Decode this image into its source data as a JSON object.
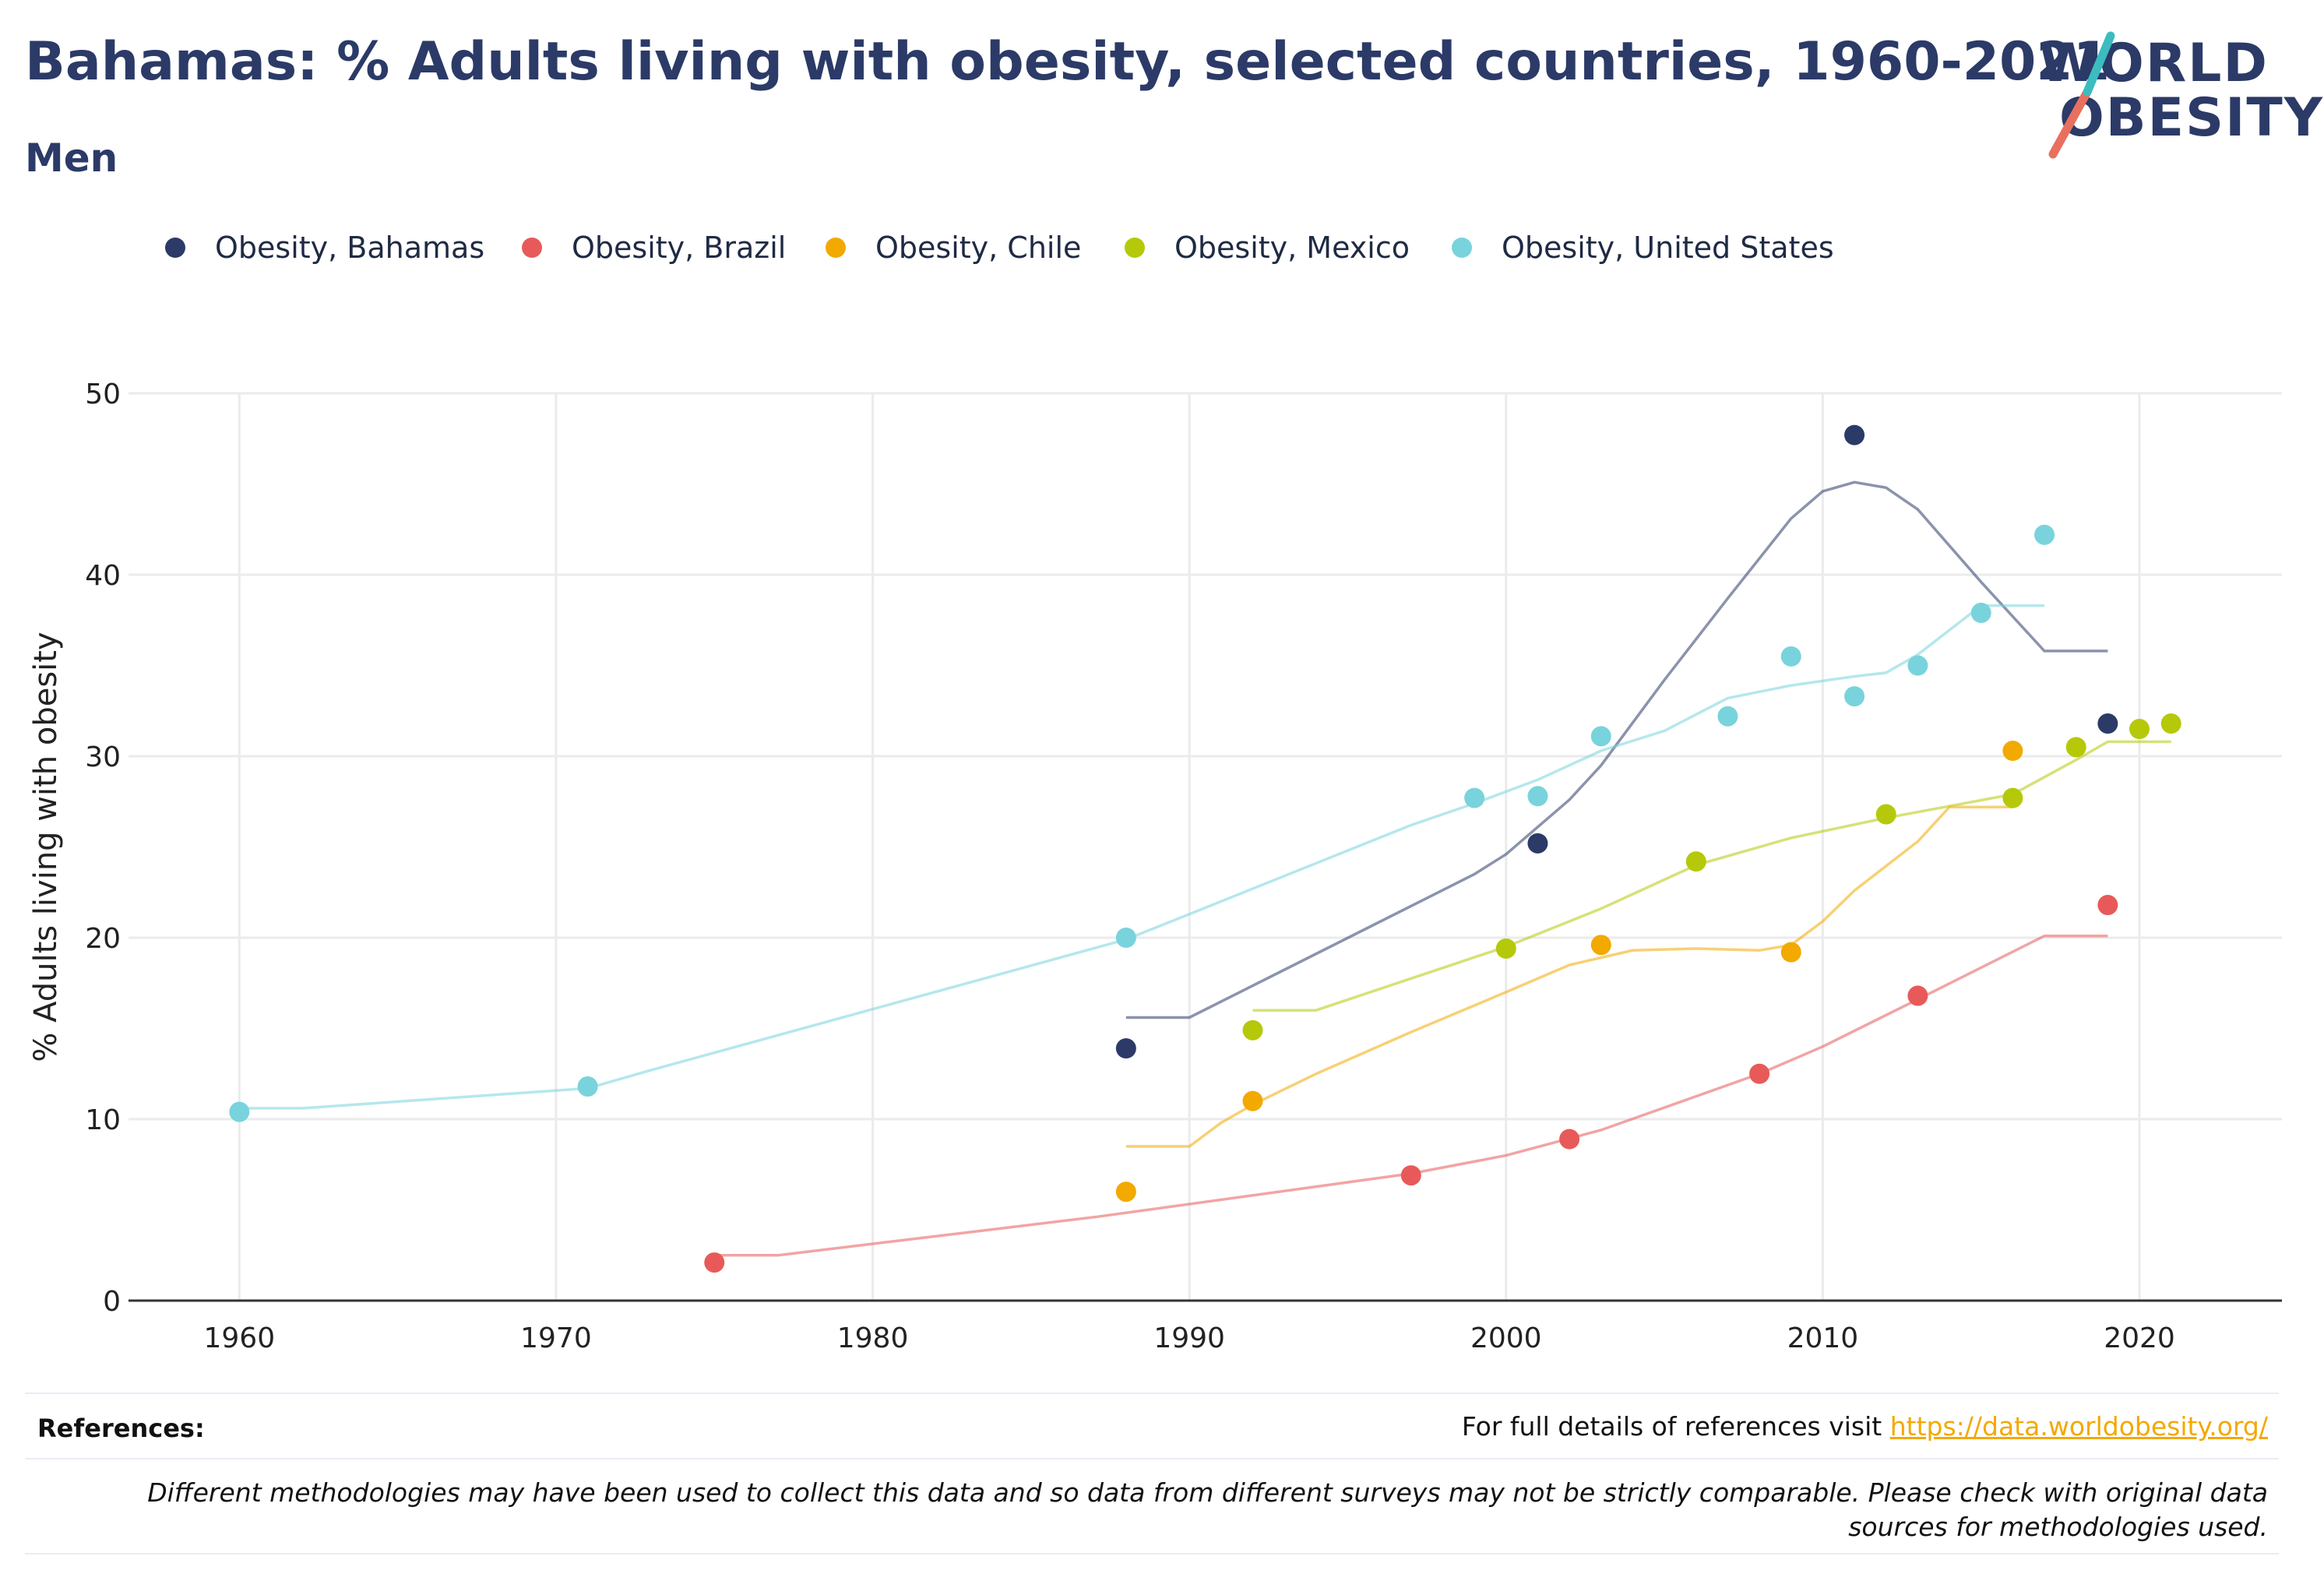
{
  "header": {
    "title": "Bahamas: % Adults living with obesity, selected countries, 1960-2021",
    "subtitle": "Men"
  },
  "logo": {
    "line1": "WORLD",
    "line2": "OBESITY"
  },
  "footer": {
    "references_label": "References:",
    "references_text": "For full details of references visit ",
    "references_link": "https://data.worldobesity.org/",
    "disclaimer": "Different methodologies may have been used to collect this data and so data from different surveys may not be strictly comparable. Please check with original data sources for methodologies used."
  },
  "colors": {
    "Bahamas": "#2b3a67",
    "Brazil": "#e85a5a",
    "Chile": "#f2a900",
    "Mexico": "#b5c90a",
    "United States": "#79d3dc",
    "title": "#2b3a67"
  },
  "chart_data": {
    "type": "scatter",
    "ylabel": "% Adults living with obesity",
    "xlim": [
      1956.5,
      2024.5
    ],
    "ylim": [
      0,
      50
    ],
    "x_ticks": [
      1960,
      1970,
      1980,
      1990,
      2000,
      2010,
      2020
    ],
    "y_ticks": [
      0,
      10,
      20,
      30,
      40,
      50
    ],
    "grid": true,
    "legend_position": "top",
    "series": [
      {
        "name": "Obesity, Bahamas",
        "color": "#2b3a67",
        "points": [
          [
            1988,
            13.9
          ],
          [
            2001,
            25.2
          ],
          [
            2011,
            47.7
          ],
          [
            2019,
            31.8
          ]
        ],
        "trend": [
          [
            1988,
            15.6
          ],
          [
            1990,
            15.6
          ],
          [
            1999,
            23.5
          ],
          [
            2000,
            24.6
          ],
          [
            2002,
            27.6
          ],
          [
            2003,
            29.5
          ],
          [
            2005,
            34.2
          ],
          [
            2007,
            38.7
          ],
          [
            2009,
            43.1
          ],
          [
            2010,
            44.6
          ],
          [
            2011,
            45.1
          ],
          [
            2012,
            44.8
          ],
          [
            2013,
            43.6
          ],
          [
            2015,
            39.6
          ],
          [
            2017,
            35.8
          ],
          [
            2019,
            35.8
          ]
        ]
      },
      {
        "name": "Obesity, Brazil",
        "color": "#e85a5a",
        "points": [
          [
            1975,
            2.1
          ],
          [
            1997,
            6.9
          ],
          [
            2002,
            8.9
          ],
          [
            2008,
            12.5
          ],
          [
            2013,
            16.8
          ],
          [
            2019,
            21.8
          ]
        ],
        "trend": [
          [
            1975,
            2.5
          ],
          [
            1977,
            2.5
          ],
          [
            1987,
            4.6
          ],
          [
            1997,
            7.0
          ],
          [
            2000,
            8.0
          ],
          [
            2003,
            9.4
          ],
          [
            2008,
            12.5
          ],
          [
            2010,
            14.0
          ],
          [
            2013,
            16.6
          ],
          [
            2017,
            20.1
          ],
          [
            2019,
            20.1
          ]
        ]
      },
      {
        "name": "Obesity, Chile",
        "color": "#f2a900",
        "points": [
          [
            1988,
            6.0
          ],
          [
            1992,
            11.0
          ],
          [
            2003,
            19.6
          ],
          [
            2009,
            19.2
          ],
          [
            2016,
            30.3
          ]
        ],
        "trend": [
          [
            1988,
            8.5
          ],
          [
            1990,
            8.5
          ],
          [
            1991,
            9.8
          ],
          [
            1992,
            10.8
          ],
          [
            1994,
            12.5
          ],
          [
            1997,
            14.8
          ],
          [
            2000,
            17.0
          ],
          [
            2002,
            18.5
          ],
          [
            2004,
            19.3
          ],
          [
            2006,
            19.4
          ],
          [
            2008,
            19.3
          ],
          [
            2009,
            19.6
          ],
          [
            2010,
            20.9
          ],
          [
            2011,
            22.6
          ],
          [
            2013,
            25.3
          ],
          [
            2014,
            27.2
          ],
          [
            2016,
            27.2
          ]
        ]
      },
      {
        "name": "Obesity, Mexico",
        "color": "#b5c90a",
        "points": [
          [
            1992,
            14.9
          ],
          [
            2000,
            19.4
          ],
          [
            2006,
            24.2
          ],
          [
            2012,
            26.8
          ],
          [
            2016,
            27.7
          ],
          [
            2018,
            30.5
          ],
          [
            2020,
            31.5
          ],
          [
            2021,
            31.8
          ]
        ],
        "trend": [
          [
            1992,
            16.0
          ],
          [
            1994,
            16.0
          ],
          [
            2000,
            19.5
          ],
          [
            2003,
            21.6
          ],
          [
            2006,
            24.0
          ],
          [
            2009,
            25.5
          ],
          [
            2012,
            26.6
          ],
          [
            2016,
            27.9
          ],
          [
            2018,
            29.8
          ],
          [
            2019,
            30.8
          ],
          [
            2021,
            30.8
          ]
        ]
      },
      {
        "name": "Obesity, United States",
        "color": "#79d3dc",
        "points": [
          [
            1960,
            10.4
          ],
          [
            1971,
            11.8
          ],
          [
            1988,
            20.0
          ],
          [
            1999,
            27.7
          ],
          [
            2001,
            27.8
          ],
          [
            2003,
            31.1
          ],
          [
            2007,
            32.2
          ],
          [
            2009,
            35.5
          ],
          [
            2011,
            33.3
          ],
          [
            2013,
            35.0
          ],
          [
            2015,
            37.9
          ],
          [
            2017,
            42.2
          ]
        ],
        "trend": [
          [
            1960,
            10.6
          ],
          [
            1962,
            10.6
          ],
          [
            1971,
            11.7
          ],
          [
            1973,
            12.7
          ],
          [
            1988,
            19.9
          ],
          [
            1990,
            21.3
          ],
          [
            1997,
            26.2
          ],
          [
            1999,
            27.4
          ],
          [
            2001,
            28.7
          ],
          [
            2003,
            30.3
          ],
          [
            2005,
            31.4
          ],
          [
            2007,
            33.2
          ],
          [
            2009,
            33.9
          ],
          [
            2011,
            34.4
          ],
          [
            2012,
            34.6
          ],
          [
            2013,
            35.6
          ],
          [
            2015,
            38.3
          ],
          [
            2017,
            38.3
          ]
        ]
      }
    ]
  }
}
